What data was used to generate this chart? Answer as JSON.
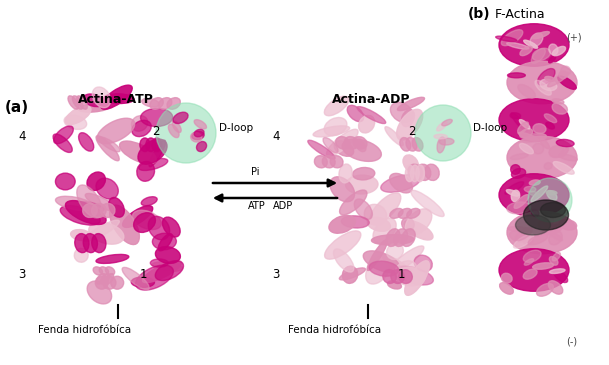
{
  "fig_width": 6.09,
  "fig_height": 3.65,
  "dpi": 100,
  "bg_color": "#ffffff",
  "label_a": "(a)",
  "label_b": "(b)",
  "label_b2": "F-Actina",
  "title_atp": "Actina-ATP",
  "title_adp": "Actina-ADP",
  "dloop_label": "D-loop",
  "fenda_label": "Fenda hidrofóbíca",
  "arrow_top_label": "Pi",
  "arrow_bottom_labels": [
    "ATP",
    "ADP"
  ],
  "plus_label": "(+)",
  "minus_label": "(-)",
  "protein_color_dark": [
    0.78,
    0.0,
    0.47
  ],
  "protein_color_mid": [
    0.87,
    0.55,
    0.7
  ],
  "protein_color_light": [
    0.93,
    0.75,
    0.82
  ],
  "dloop_circle_color": [
    0.56,
    0.87,
    0.7
  ],
  "bg_color_rgb": [
    1.0,
    1.0,
    1.0
  ]
}
